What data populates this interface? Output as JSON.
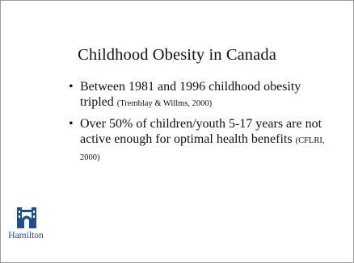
{
  "slide": {
    "title": "Childhood Obesity in Canada",
    "bullets": [
      {
        "text": "Between 1981 and 1996 childhood obesity tripled",
        "cite": "(Tremblay & Willms, 2000)"
      },
      {
        "text": "Over 50% of children/youth 5-17 years are not active enough for optimal health benefits",
        "cite": "(CFLRI, 2000)"
      }
    ]
  },
  "logo": {
    "text": "Hamilton",
    "color": "#1e4f8c"
  }
}
